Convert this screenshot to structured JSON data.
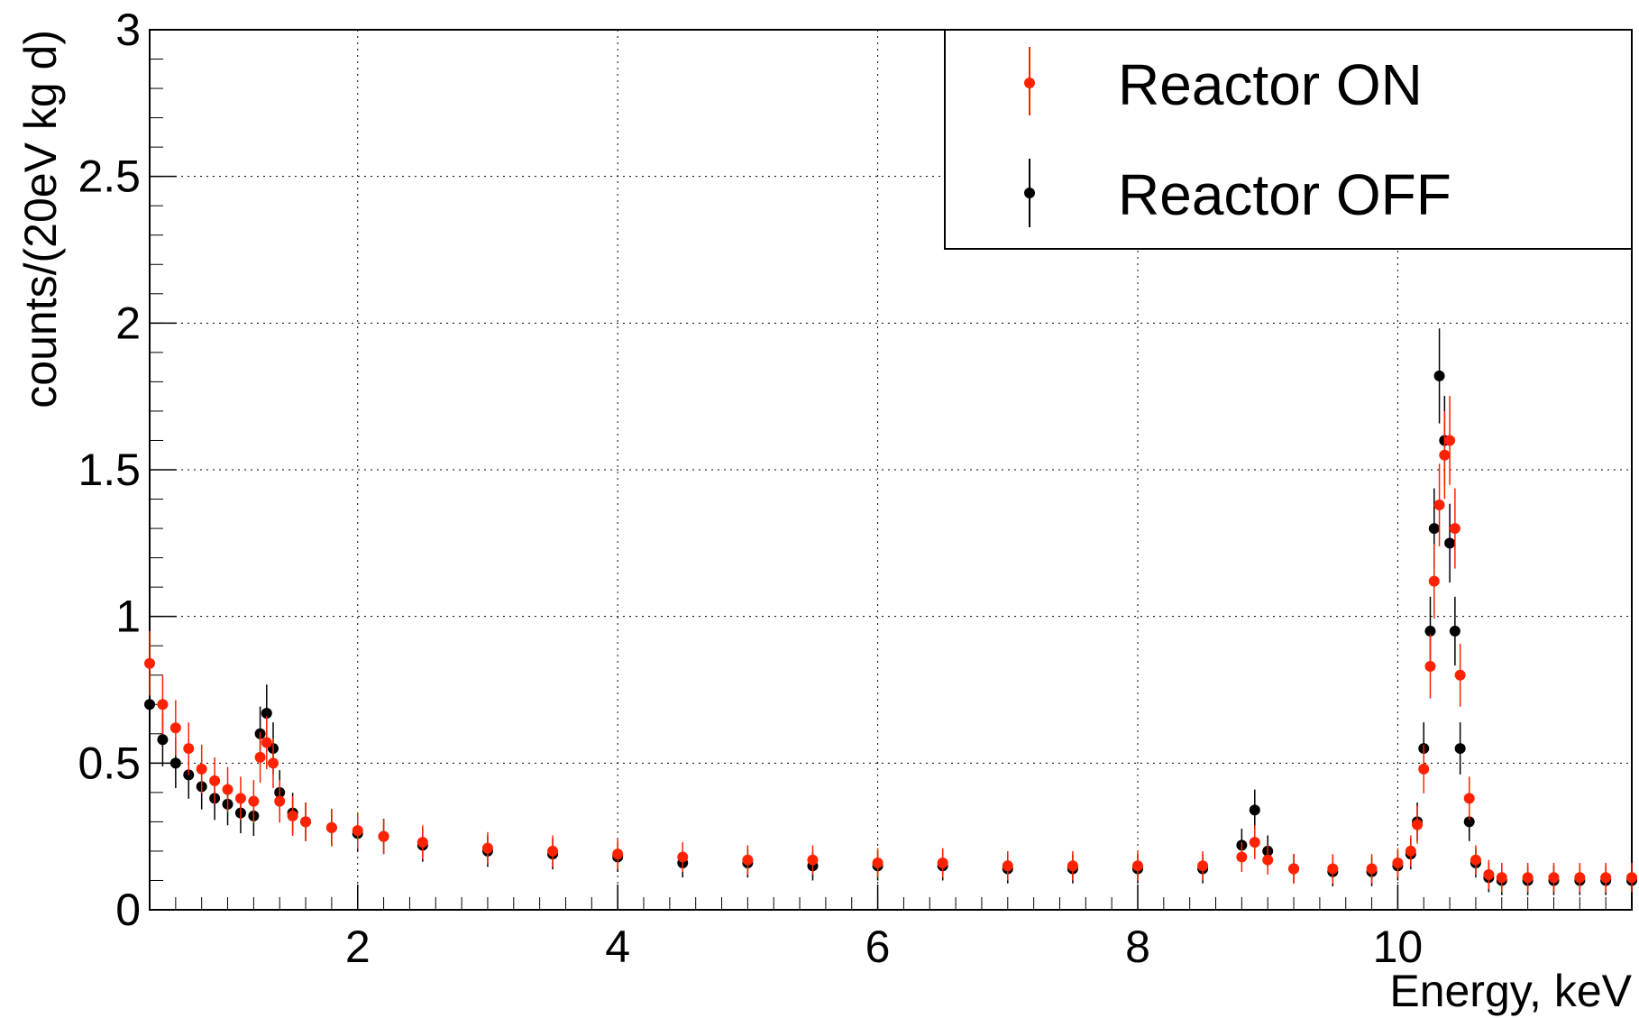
{
  "chart_data": {
    "type": "scatter",
    "title": "",
    "xlabel": "Energy, keV",
    "ylabel": "counts/(20eV kg d)",
    "xlim": [
      0.4,
      11.8
    ],
    "ylim": [
      0,
      3
    ],
    "x_ticks": [
      2,
      4,
      6,
      8,
      10
    ],
    "x_tick_labels": [
      "2",
      "4",
      "6",
      "8",
      "10"
    ],
    "y_ticks": [
      0,
      0.5,
      1,
      1.5,
      2,
      2.5,
      3
    ],
    "y_tick_labels": [
      "0",
      "0.5",
      "1",
      "1.5",
      "2",
      "2.5",
      "3"
    ],
    "grid": true,
    "legend_position": "top-right",
    "series": [
      {
        "name": "Reactor ON",
        "color": "#ff2200",
        "x": [
          0.4,
          0.5,
          0.6,
          0.7,
          0.8,
          0.9,
          1.0,
          1.1,
          1.2,
          1.25,
          1.3,
          1.35,
          1.4,
          1.5,
          1.6,
          1.8,
          2.0,
          2.2,
          2.5,
          3.0,
          3.5,
          4.0,
          4.5,
          5.0,
          5.5,
          6.0,
          6.5,
          7.0,
          7.5,
          8.0,
          8.5,
          8.8,
          8.9,
          9.0,
          9.2,
          9.5,
          9.8,
          10.0,
          10.1,
          10.15,
          10.2,
          10.25,
          10.28,
          10.32,
          10.36,
          10.4,
          10.44,
          10.48,
          10.55,
          10.6,
          10.7,
          10.8,
          11.0,
          11.2,
          11.4,
          11.6,
          11.8
        ],
        "y": [
          0.84,
          0.7,
          0.62,
          0.55,
          0.48,
          0.44,
          0.41,
          0.38,
          0.37,
          0.52,
          0.57,
          0.5,
          0.37,
          0.32,
          0.3,
          0.28,
          0.27,
          0.25,
          0.23,
          0.21,
          0.2,
          0.19,
          0.18,
          0.17,
          0.17,
          0.16,
          0.16,
          0.15,
          0.15,
          0.15,
          0.15,
          0.18,
          0.23,
          0.17,
          0.14,
          0.14,
          0.14,
          0.16,
          0.2,
          0.29,
          0.48,
          0.83,
          1.12,
          1.38,
          1.55,
          1.6,
          1.3,
          0.8,
          0.38,
          0.17,
          0.12,
          0.11,
          0.11,
          0.11,
          0.11,
          0.11,
          0.11
        ]
      },
      {
        "name": "Reactor OFF",
        "color": "#000000",
        "x": [
          0.4,
          0.5,
          0.6,
          0.7,
          0.8,
          0.9,
          1.0,
          1.1,
          1.2,
          1.25,
          1.3,
          1.35,
          1.4,
          1.5,
          1.6,
          1.8,
          2.0,
          2.2,
          2.5,
          3.0,
          3.5,
          4.0,
          4.5,
          5.0,
          5.5,
          6.0,
          6.5,
          7.0,
          7.5,
          8.0,
          8.5,
          8.8,
          8.9,
          9.0,
          9.2,
          9.5,
          9.8,
          10.0,
          10.1,
          10.15,
          10.2,
          10.25,
          10.28,
          10.32,
          10.36,
          10.4,
          10.44,
          10.48,
          10.55,
          10.6,
          10.7,
          10.8,
          11.0,
          11.2,
          11.4,
          11.6,
          11.8
        ],
        "y": [
          0.7,
          0.58,
          0.5,
          0.46,
          0.42,
          0.38,
          0.36,
          0.33,
          0.32,
          0.6,
          0.67,
          0.55,
          0.4,
          0.33,
          0.3,
          0.28,
          0.26,
          0.25,
          0.22,
          0.2,
          0.19,
          0.18,
          0.16,
          0.16,
          0.15,
          0.15,
          0.15,
          0.14,
          0.14,
          0.14,
          0.14,
          0.22,
          0.34,
          0.2,
          0.14,
          0.13,
          0.13,
          0.15,
          0.19,
          0.3,
          0.55,
          0.95,
          1.3,
          1.82,
          1.6,
          1.25,
          0.95,
          0.55,
          0.3,
          0.16,
          0.11,
          0.1,
          0.1,
          0.1,
          0.1,
          0.1,
          0.1
        ]
      }
    ]
  }
}
